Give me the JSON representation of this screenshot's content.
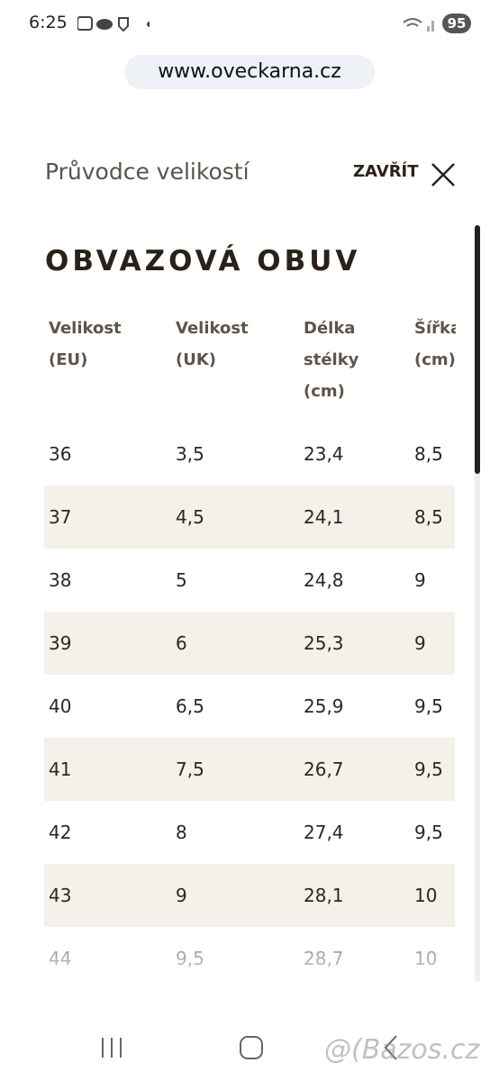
{
  "status_bar": {
    "time": "6:25",
    "battery": "95"
  },
  "browser": {
    "url": "www.oveckarna.cz"
  },
  "header": {
    "title": "Průvodce velikostí",
    "close": "ZAVŘÍT"
  },
  "section": {
    "title": "OBVAZOVÁ OBUV"
  },
  "table": {
    "headers": [
      "Velikost (EU)",
      "Velikost (UK)",
      "Délka stélky (cm)",
      "Šířka (cm)"
    ],
    "rows": [
      [
        "36",
        "3,5",
        "23,4",
        "8,5"
      ],
      [
        "37",
        "4,5",
        "24,1",
        "8,5"
      ],
      [
        "38",
        "5",
        "24,8",
        "9"
      ],
      [
        "39",
        "6",
        "25,3",
        "9"
      ],
      [
        "40",
        "6,5",
        "25,9",
        "9,5"
      ],
      [
        "41",
        "7,5",
        "26,7",
        "9,5"
      ],
      [
        "42",
        "8",
        "27,4",
        "9,5"
      ],
      [
        "43",
        "9",
        "28,1",
        "10"
      ],
      [
        "44",
        "9,5",
        "28,7",
        "10"
      ]
    ]
  },
  "watermark": "Bazos.cz"
}
